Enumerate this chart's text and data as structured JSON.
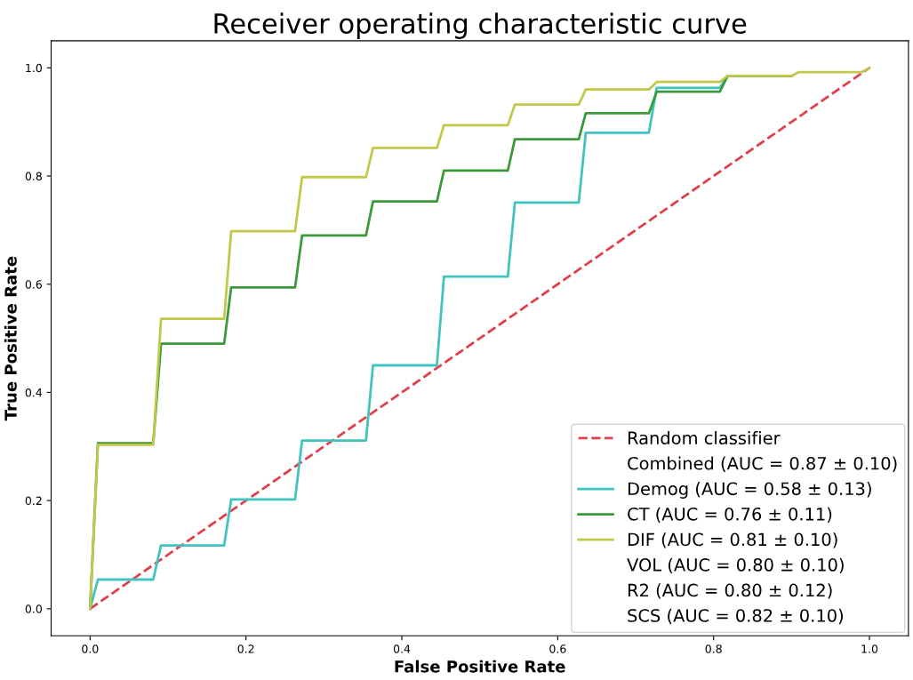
{
  "chart_data": {
    "type": "line",
    "title": "Receiver operating characteristic curve",
    "xlabel": "False Positive Rate",
    "ylabel": "True Positive Rate",
    "xlim": [
      -0.05,
      1.05
    ],
    "ylim": [
      -0.05,
      1.05
    ],
    "xticks": [
      {
        "value": 0,
        "label": "0.0"
      },
      {
        "value": 0.2,
        "label": "0.2"
      },
      {
        "value": 0.4,
        "label": "0.4"
      },
      {
        "value": 0.6,
        "label": "0.6"
      },
      {
        "value": 0.8,
        "label": "0.8"
      },
      {
        "value": 1,
        "label": "1.0"
      }
    ],
    "yticks": [
      {
        "value": 0,
        "label": "0.0"
      },
      {
        "value": 0.2,
        "label": "0.2"
      },
      {
        "value": 0.4,
        "label": "0.4"
      },
      {
        "value": 0.6,
        "label": "0.6"
      },
      {
        "value": 0.8,
        "label": "0.8"
      },
      {
        "value": 1,
        "label": "1.0"
      }
    ],
    "grid": false,
    "legend": "bottom right",
    "marker": "none",
    "series": [
      {
        "name": "Random classifier",
        "color": "#e0404a",
        "line_style": "dashed",
        "x": [
          0,
          1
        ],
        "values": [
          0,
          1
        ]
      },
      {
        "name": "Combined (AUC = 0.87 ± 0.10)"
      },
      {
        "name": "Demog (AUC = 0.58 ± 0.13)",
        "color": "#40c4c0",
        "line_style": "solid",
        "x": [
          0,
          0.01,
          0.081,
          0.091,
          0.172,
          0.181,
          0.263,
          0.272,
          0.354,
          0.363,
          0.445,
          0.454,
          0.536,
          0.545,
          0.627,
          0.636,
          0.717,
          0.727,
          0.808,
          0.818,
          0.9
        ],
        "values": [
          0,
          0.054,
          0.054,
          0.117,
          0.117,
          0.202,
          0.202,
          0.311,
          0.311,
          0.45,
          0.45,
          0.614,
          0.614,
          0.751,
          0.751,
          0.88,
          0.88,
          0.963,
          0.963,
          0.985,
          0.985
        ]
      },
      {
        "name": "CT (AUC = 0.76 ± 0.11)",
        "color": "#3a9a3a",
        "line_style": "solid",
        "x": [
          0,
          0.01,
          0.081,
          0.091,
          0.172,
          0.181,
          0.263,
          0.272,
          0.354,
          0.363,
          0.445,
          0.454,
          0.536,
          0.545,
          0.627,
          0.636,
          0.717,
          0.727,
          0.808,
          0.818,
          0.9
        ],
        "values": [
          0,
          0.306,
          0.306,
          0.49,
          0.49,
          0.594,
          0.594,
          0.69,
          0.69,
          0.753,
          0.753,
          0.81,
          0.81,
          0.868,
          0.868,
          0.916,
          0.916,
          0.956,
          0.956,
          0.985,
          0.985
        ]
      },
      {
        "name": "DIF (AUC = 0.81 ± 0.10)",
        "color": "#c2c84a",
        "line_style": "solid",
        "x": [
          0,
          0.01,
          0.081,
          0.091,
          0.172,
          0.181,
          0.263,
          0.272,
          0.354,
          0.363,
          0.445,
          0.454,
          0.536,
          0.545,
          0.627,
          0.636,
          0.717,
          0.727,
          0.808,
          0.818,
          0.9,
          0.909,
          0.99,
          1.0
        ],
        "values": [
          0,
          0.303,
          0.303,
          0.536,
          0.536,
          0.698,
          0.698,
          0.798,
          0.798,
          0.852,
          0.852,
          0.894,
          0.894,
          0.932,
          0.932,
          0.96,
          0.96,
          0.974,
          0.974,
          0.985,
          0.985,
          0.992,
          0.992,
          1.0
        ]
      },
      {
        "name": "VOL (AUC = 0.80 ± 0.10)"
      },
      {
        "name": "R2 (AUC = 0.80 ± 0.12)"
      },
      {
        "name": "SCS (AUC = 0.82 ± 0.10)"
      }
    ]
  }
}
